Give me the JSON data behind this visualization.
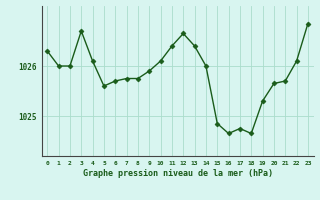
{
  "hours": [
    0,
    1,
    2,
    3,
    4,
    5,
    6,
    7,
    8,
    9,
    10,
    11,
    12,
    13,
    14,
    15,
    16,
    17,
    18,
    19,
    20,
    21,
    22,
    23
  ],
  "pressure": [
    1026.3,
    1026.0,
    1026.0,
    1026.7,
    1026.1,
    1025.6,
    1025.7,
    1025.75,
    1025.75,
    1025.9,
    1026.1,
    1026.4,
    1026.65,
    1026.4,
    1026.0,
    1024.85,
    1024.65,
    1024.75,
    1024.65,
    1025.3,
    1025.65,
    1025.7,
    1026.1,
    1026.85
  ],
  "line_color": "#1a5c1a",
  "marker_color": "#1a5c1a",
  "bg_color": "#d8f5f0",
  "grid_color": "#aaddcc",
  "xlabel": "Graphe pression niveau de la mer (hPa)",
  "xlabel_color": "#1a5c1a",
  "tick_color": "#1a5c1a",
  "yticks": [
    1025,
    1026
  ],
  "ylim": [
    1024.2,
    1027.2
  ],
  "xlim": [
    -0.5,
    23.5
  ],
  "xtick_labels": [
    "0",
    "1",
    "2",
    "3",
    "4",
    "5",
    "6",
    "7",
    "8",
    "9",
    "10",
    "11",
    "12",
    "13",
    "14",
    "15",
    "16",
    "17",
    "18",
    "19",
    "20",
    "21",
    "22",
    "23"
  ]
}
